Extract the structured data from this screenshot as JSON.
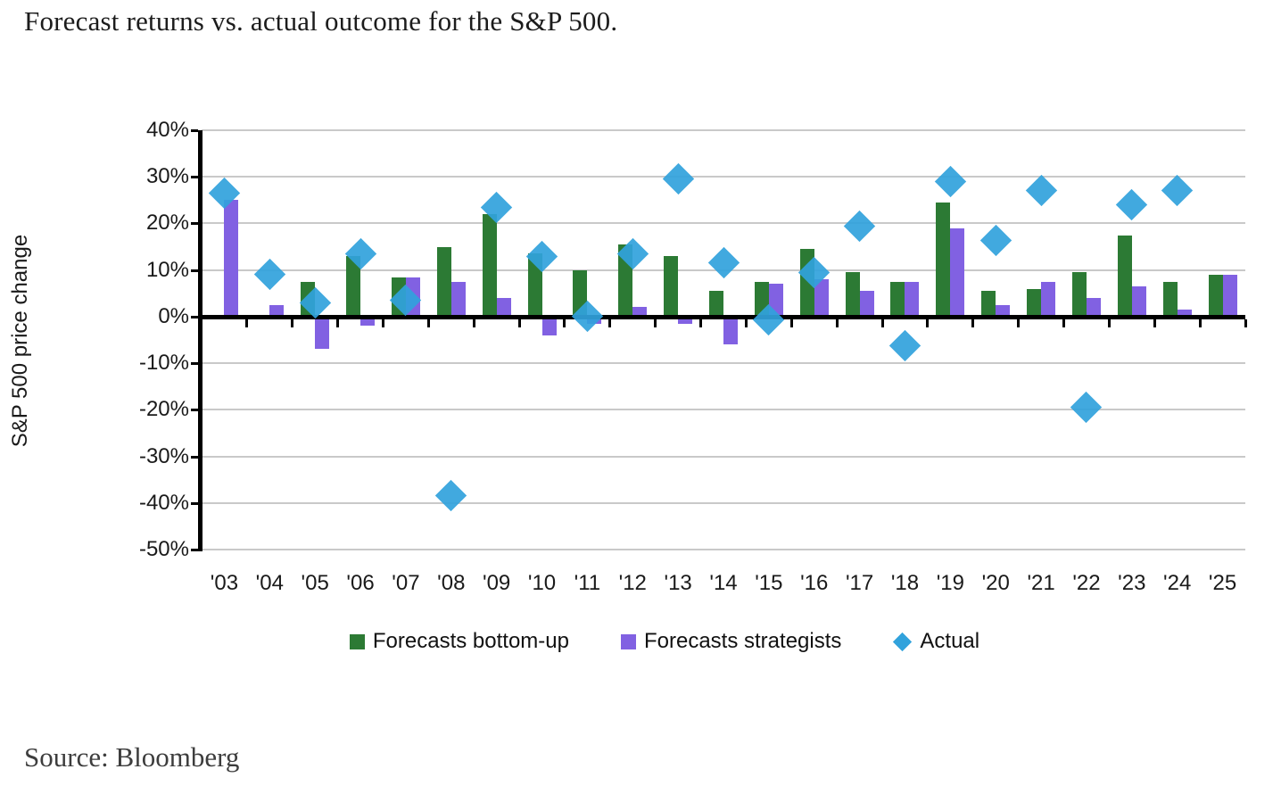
{
  "title": "Forecast returns vs. actual outcome for the S&P 500.",
  "source": "Source: Bloomberg",
  "chart_data": {
    "type": "combo",
    "title": "Forecast returns vs. actual outcome for the S&P 500.",
    "xlabel": "",
    "ylabel": "S&P 500 price change",
    "ylim": [
      -50,
      40
    ],
    "ytick_step": 10,
    "ytick_values": [
      40,
      30,
      20,
      10,
      0,
      -10,
      -20,
      -30,
      -40,
      -50
    ],
    "ytick_labels": [
      "40%",
      "30%",
      "20%",
      "10%",
      "0%",
      "-10%",
      "-20%",
      "-30%",
      "-40%",
      "-50%"
    ],
    "grid": true,
    "legend_position": "bottom",
    "categories": [
      "'03",
      "'04",
      "'05",
      "'06",
      "'07",
      "'08",
      "'09",
      "'10",
      "'11",
      "'12",
      "'13",
      "'14",
      "'15",
      "'16",
      "'17",
      "'18",
      "'19",
      "'20",
      "'21",
      "'22",
      "'23",
      "'24",
      "'25"
    ],
    "series": [
      {
        "name": "Forecasts bottom-up",
        "type": "bar",
        "color": "#2c7a34",
        "values": [
          null,
          null,
          7.5,
          13,
          8.5,
          15,
          22,
          13.5,
          10,
          15.5,
          13,
          5.5,
          7.5,
          14.5,
          9.5,
          7.5,
          24.5,
          5.5,
          6,
          9.5,
          17.5,
          7.5,
          9
        ]
      },
      {
        "name": "Forecasts strategists",
        "type": "bar",
        "color": "#8161e2",
        "values": [
          25,
          2.5,
          -7,
          -2,
          8.5,
          7.5,
          4,
          -4,
          -1.5,
          2,
          -1.5,
          -6,
          7,
          8,
          5.5,
          7.5,
          19,
          2.5,
          7.5,
          4,
          6.5,
          1.5,
          9
        ]
      },
      {
        "name": "Actual",
        "type": "scatter",
        "marker": "diamond",
        "color": "#31a2dc",
        "values": [
          26.5,
          9,
          3,
          13.5,
          3.5,
          -38.5,
          23.5,
          13,
          0,
          13.5,
          29.5,
          11.5,
          -0.7,
          9.5,
          19.5,
          -6.2,
          29,
          16.3,
          27,
          -19.5,
          24,
          27,
          null
        ]
      }
    ],
    "colors": {
      "gridline": "#c9c9c9",
      "axis": "#000000",
      "text": "#1a1a1a"
    }
  }
}
